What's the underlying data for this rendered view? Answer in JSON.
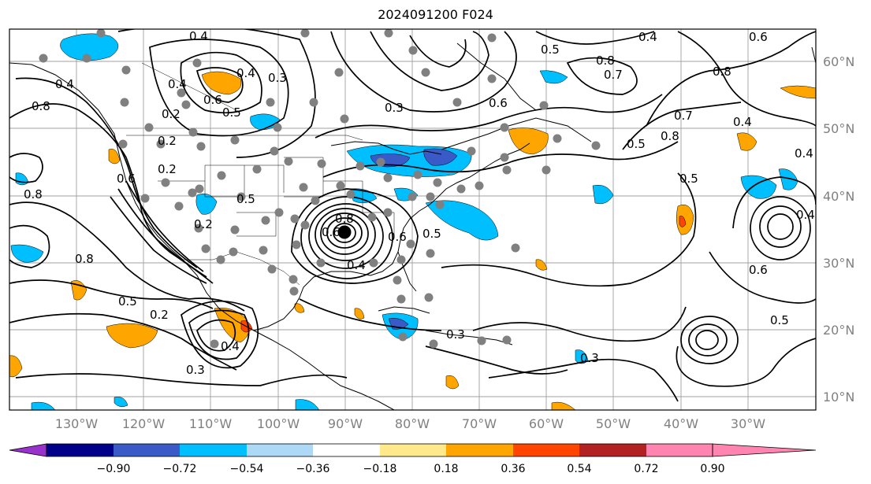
{
  "title": "2024091200 F024",
  "map": {
    "longitude_labels": [
      "130°W",
      "120°W",
      "110°W",
      "100°W",
      "90°W",
      "80°W",
      "70°W",
      "60°W",
      "50°W",
      "40°W",
      "30°W"
    ],
    "latitude_labels": [
      "60°N",
      "50°N",
      "40°N",
      "30°N",
      "20°N",
      "10°N"
    ],
    "contour_labels": [
      "0.4",
      "0.4",
      "0.3",
      "0.2",
      "0.4",
      "0.6",
      "0.5",
      "0.2",
      "0.4",
      "0.8",
      "0.6",
      "0.8",
      "0.5",
      "0.2",
      "0.3",
      "0.4",
      "0.2",
      "0.5",
      "0.6",
      "0.8",
      "0.6",
      "0.5",
      "0.4",
      "0.5",
      "0.8",
      "0.7",
      "0.6",
      "0.3",
      "0.4",
      "0.8",
      "0.6",
      "0.4",
      "0.5",
      "0.7",
      "0.4",
      "0.5",
      "0.6",
      "0.5",
      "0.3",
      "0.8",
      "0.4",
      "0.8",
      "0.2",
      "0.3"
    ]
  },
  "colorbar": {
    "tick_labels": [
      "−0.90",
      "−0.72",
      "−0.54",
      "−0.36",
      "−0.18",
      "0.18",
      "0.36",
      "0.54",
      "0.72",
      "0.90"
    ],
    "colors": [
      "#9932CC",
      "#00008B",
      "#3A5BC7",
      "#00BFFF",
      "#ADD8F6",
      "#FFFFFF",
      "#FFE98A",
      "#FFA500",
      "#FF4500",
      "#B22222",
      "#FF85B0"
    ]
  }
}
